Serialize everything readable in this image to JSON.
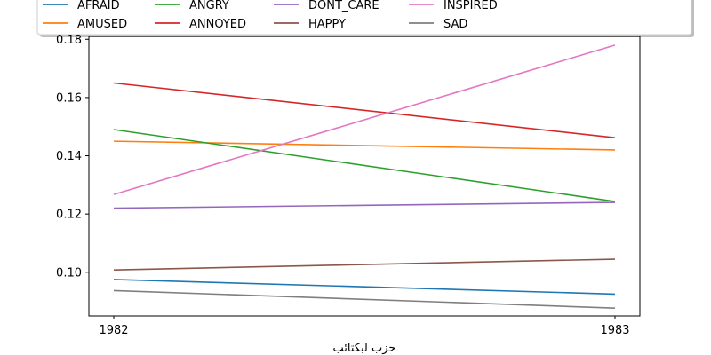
{
  "chart_data": {
    "type": "line",
    "title": "",
    "xlabel": "حزب لبكتائب",
    "ylabel": "",
    "x": [
      "1982",
      "1983"
    ],
    "ylim": [
      0.085,
      0.181
    ],
    "yticks": [
      "0.10",
      "0.12",
      "0.14",
      "0.16",
      "0.18"
    ],
    "ytick_values": [
      0.1,
      0.12,
      0.14,
      0.16,
      0.18
    ],
    "grid": false,
    "legend_placement": "top, above plot",
    "series": [
      {
        "name": "AFRAID",
        "color": "#1f77b4",
        "values": [
          0.0975,
          0.0925
        ]
      },
      {
        "name": "AMUSED",
        "color": "#ff7f0e",
        "values": [
          0.145,
          0.142
        ]
      },
      {
        "name": "ANGRY",
        "color": "#2ca02c",
        "values": [
          0.149,
          0.1243
        ]
      },
      {
        "name": "ANNOYED",
        "color": "#d62728",
        "values": [
          0.165,
          0.1462
        ]
      },
      {
        "name": "DONT_CARE",
        "color": "#9467bd",
        "values": [
          0.122,
          0.124
        ]
      },
      {
        "name": "HAPPY",
        "color": "#8c564b",
        "values": [
          0.1008,
          0.1045
        ]
      },
      {
        "name": "INSPIRED",
        "color": "#e377c2",
        "values": [
          0.1267,
          0.178
        ]
      },
      {
        "name": "SAD",
        "color": "#7f7f7f",
        "values": [
          0.0937,
          0.0877
        ]
      }
    ]
  }
}
